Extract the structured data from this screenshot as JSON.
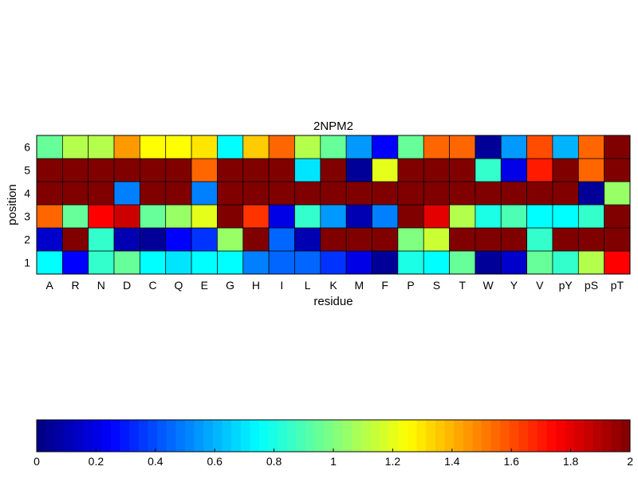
{
  "chart_data": {
    "type": "heatmap",
    "title": "2NPM2",
    "xlabel": "residue",
    "ylabel": "position",
    "x_categories": [
      "A",
      "R",
      "N",
      "D",
      "C",
      "Q",
      "E",
      "G",
      "H",
      "I",
      "L",
      "K",
      "M",
      "F",
      "P",
      "S",
      "T",
      "W",
      "Y",
      "V",
      "pY",
      "pS",
      "pT"
    ],
    "y_categories": [
      "1",
      "2",
      "3",
      "4",
      "5",
      "6"
    ],
    "values": [
      [
        0.75,
        0.25,
        0.85,
        0.95,
        0.75,
        0.7,
        0.75,
        0.75,
        0.5,
        0.45,
        0.45,
        0.35,
        0.2,
        0.05,
        0.8,
        0.75,
        0.95,
        0.05,
        0.15,
        0.95,
        0.85,
        1.1,
        1.75
      ],
      [
        0.15,
        2.0,
        0.85,
        0.1,
        0.05,
        0.25,
        0.35,
        1.05,
        2.0,
        0.45,
        0.1,
        2.0,
        2.0,
        2.0,
        1.0,
        1.15,
        2.0,
        2.0,
        2.0,
        0.85,
        2.0,
        2.0,
        2.0
      ],
      [
        1.55,
        0.95,
        1.75,
        1.85,
        0.95,
        1.05,
        1.2,
        2.0,
        1.65,
        0.2,
        0.85,
        0.55,
        0.1,
        0.5,
        2.0,
        1.8,
        1.1,
        0.8,
        0.9,
        0.75,
        0.75,
        0.85,
        2.0
      ],
      [
        2.0,
        2.0,
        2.0,
        0.5,
        2.0,
        2.0,
        0.5,
        2.0,
        2.0,
        2.0,
        2.0,
        2.0,
        2.0,
        2.0,
        2.0,
        2.0,
        2.0,
        2.0,
        2.0,
        2.0,
        2.0,
        0.05,
        1.05
      ],
      [
        2.0,
        2.0,
        2.0,
        2.0,
        2.0,
        2.0,
        1.55,
        2.0,
        2.0,
        2.0,
        0.7,
        2.0,
        0.05,
        1.2,
        2.0,
        2.0,
        2.0,
        0.85,
        0.2,
        1.7,
        2.0,
        1.55,
        2.0
      ],
      [
        0.95,
        1.1,
        1.1,
        1.45,
        1.25,
        1.25,
        1.3,
        0.75,
        1.35,
        1.55,
        1.1,
        0.95,
        0.55,
        0.25,
        0.95,
        1.55,
        1.55,
        0.05,
        0.55,
        1.6,
        0.6,
        1.55,
        2.0
      ]
    ],
    "colorbar": {
      "min": 0,
      "max": 2,
      "ticks": [
        "0",
        "0.2",
        "0.4",
        "0.6",
        "0.8",
        "1",
        "1.2",
        "1.4",
        "1.6",
        "1.8",
        "2"
      ],
      "colormap": "jet"
    },
    "grid": false,
    "legend": "colorbar-bottom"
  }
}
